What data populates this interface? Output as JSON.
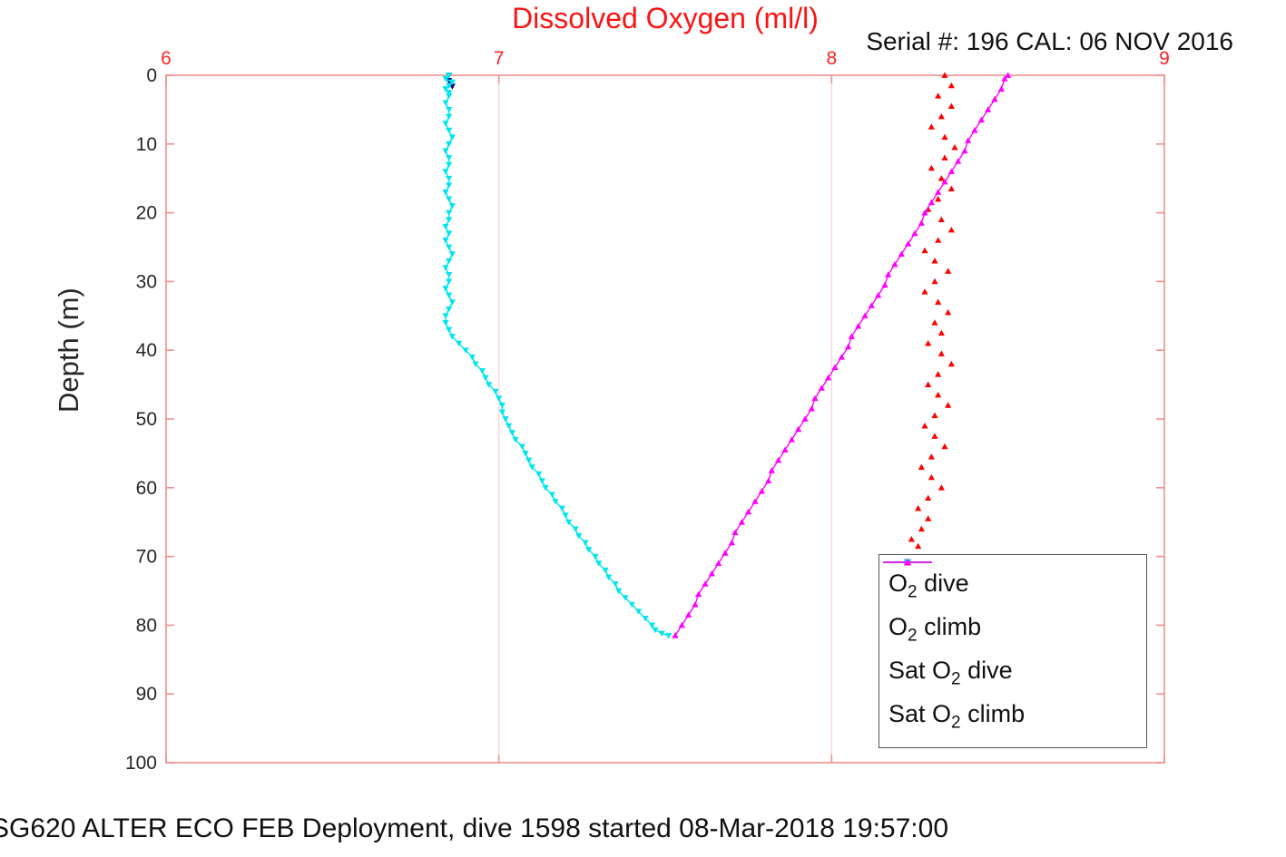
{
  "header": {
    "title": "Dissolved Oxygen (ml/l)",
    "title_color": "#fb1414",
    "serial": "Serial #: 196  CAL: 06 NOV 2016"
  },
  "ylabel": "Depth (m)",
  "footer": "SG620 ALTER ECO FEB Deployment, dive 1598 started 08-Mar-2018 19:57:00",
  "axes_style": {
    "box_color": "#ef8f8f",
    "grid_color": "#f8d7d7",
    "x_tick_label_color": "#ff2222",
    "y_tick_label_color": "#262626"
  },
  "chart_data": {
    "type": "line",
    "title": "Dissolved Oxygen (ml/l)",
    "xlabel": "",
    "ylabel": "Depth (m)",
    "xlim": [
      6,
      9
    ],
    "ylim": [
      0,
      100
    ],
    "y_axis_inverted": true,
    "x_axis_position": "top",
    "x_ticks": [
      6,
      7,
      8,
      9
    ],
    "y_ticks": [
      0,
      10,
      20,
      30,
      40,
      50,
      60,
      70,
      80,
      90,
      100
    ],
    "x_grid": [
      7,
      8
    ],
    "legend_position": "bottom-right",
    "series": [
      {
        "id": "o2-dive",
        "label_pre": "O",
        "label_sub": "2",
        "label_post": " dive",
        "color": "#00008b",
        "marker": "v",
        "line": true,
        "points": [
          [
            0,
            6.85
          ],
          [
            0.8,
            6.85
          ],
          [
            1.6,
            6.86
          ]
        ]
      },
      {
        "id": "o2-climb",
        "label_pre": "O",
        "label_sub": "2",
        "label_post": " climb",
        "color": "#ff0000",
        "marker": "^",
        "line": false,
        "points": [
          [
            0,
            8.34
          ],
          [
            1.5,
            8.36
          ],
          [
            3,
            8.32
          ],
          [
            4.5,
            8.36
          ],
          [
            6,
            8.33
          ],
          [
            7.5,
            8.3
          ],
          [
            9,
            8.34
          ],
          [
            10.5,
            8.37
          ],
          [
            12,
            8.34
          ],
          [
            13.5,
            8.3
          ],
          [
            15,
            8.33
          ],
          [
            16.5,
            8.36
          ],
          [
            18,
            8.32
          ],
          [
            19.5,
            8.29
          ],
          [
            21,
            8.33
          ],
          [
            22.5,
            8.36
          ],
          [
            24,
            8.32
          ],
          [
            25.5,
            8.28
          ],
          [
            27,
            8.31
          ],
          [
            28.5,
            8.35
          ],
          [
            30,
            8.31
          ],
          [
            31.5,
            8.28
          ],
          [
            33,
            8.32
          ],
          [
            34.5,
            8.35
          ],
          [
            36,
            8.31
          ],
          [
            37.5,
            8.33
          ],
          [
            39,
            8.29
          ],
          [
            40.5,
            8.33
          ],
          [
            42,
            8.36
          ],
          [
            43.5,
            8.32
          ],
          [
            45,
            8.29
          ],
          [
            46.5,
            8.32
          ],
          [
            48,
            8.35
          ],
          [
            49.5,
            8.31
          ],
          [
            51,
            8.28
          ],
          [
            52.5,
            8.31
          ],
          [
            54,
            8.34
          ],
          [
            55.5,
            8.3
          ],
          [
            57,
            8.27
          ],
          [
            58.5,
            8.3
          ],
          [
            60,
            8.33
          ],
          [
            61.5,
            8.29
          ],
          [
            63,
            8.26
          ],
          [
            64.5,
            8.29
          ],
          [
            66,
            8.27
          ],
          [
            67.5,
            8.24
          ],
          [
            68.5,
            8.26
          ]
        ]
      },
      {
        "id": "sat-o2-dive",
        "label_pre": "Sat O",
        "label_sub": "2",
        "label_post": " dive",
        "color": "#00e5ee",
        "marker": "v",
        "line": true,
        "points": [
          [
            0,
            6.85
          ],
          [
            0.5,
            6.84
          ],
          [
            1,
            6.86
          ],
          [
            1.5,
            6.85
          ],
          [
            2,
            6.84
          ],
          [
            2.5,
            6.85
          ],
          [
            3,
            6.85
          ],
          [
            4,
            6.84
          ],
          [
            5,
            6.85
          ],
          [
            6,
            6.85
          ],
          [
            7,
            6.84
          ],
          [
            8,
            6.85
          ],
          [
            9,
            6.86
          ],
          [
            10,
            6.85
          ],
          [
            11,
            6.84
          ],
          [
            12,
            6.85
          ],
          [
            13,
            6.85
          ],
          [
            14,
            6.84
          ],
          [
            15,
            6.85
          ],
          [
            16,
            6.85
          ],
          [
            17,
            6.84
          ],
          [
            18,
            6.85
          ],
          [
            19,
            6.86
          ],
          [
            20,
            6.85
          ],
          [
            21,
            6.85
          ],
          [
            22,
            6.84
          ],
          [
            23,
            6.85
          ],
          [
            24,
            6.84
          ],
          [
            25,
            6.85
          ],
          [
            26,
            6.86
          ],
          [
            27,
            6.85
          ],
          [
            28,
            6.84
          ],
          [
            29,
            6.85
          ],
          [
            30,
            6.85
          ],
          [
            31,
            6.84
          ],
          [
            32,
            6.85
          ],
          [
            33,
            6.86
          ],
          [
            34,
            6.85
          ],
          [
            35,
            6.84
          ],
          [
            36,
            6.84
          ],
          [
            37,
            6.85
          ],
          [
            38,
            6.86
          ],
          [
            39,
            6.88
          ],
          [
            40,
            6.9
          ],
          [
            41,
            6.92
          ],
          [
            42,
            6.93
          ],
          [
            43,
            6.95
          ],
          [
            44,
            6.96
          ],
          [
            45,
            6.97
          ],
          [
            46,
            6.99
          ],
          [
            47,
            7.0
          ],
          [
            48,
            7.01
          ],
          [
            49,
            7.01
          ],
          [
            50,
            7.02
          ],
          [
            51,
            7.03
          ],
          [
            52,
            7.04
          ],
          [
            53,
            7.05
          ],
          [
            54,
            7.07
          ],
          [
            55,
            7.08
          ],
          [
            56,
            7.09
          ],
          [
            57,
            7.1
          ],
          [
            58,
            7.12
          ],
          [
            59,
            7.13
          ],
          [
            60,
            7.14
          ],
          [
            61,
            7.16
          ],
          [
            62,
            7.17
          ],
          [
            63,
            7.19
          ],
          [
            64,
            7.2
          ],
          [
            65,
            7.21
          ],
          [
            66,
            7.23
          ],
          [
            67,
            7.24
          ],
          [
            68,
            7.26
          ],
          [
            69,
            7.27
          ],
          [
            70,
            7.29
          ],
          [
            71,
            7.3
          ],
          [
            72,
            7.32
          ],
          [
            73,
            7.33
          ],
          [
            74,
            7.35
          ],
          [
            75,
            7.36
          ],
          [
            76,
            7.38
          ],
          [
            77,
            7.4
          ],
          [
            78,
            7.42
          ],
          [
            79,
            7.44
          ],
          [
            80,
            7.46
          ],
          [
            80.7,
            7.47
          ],
          [
            81.2,
            7.49
          ],
          [
            81.5,
            7.51
          ]
        ]
      },
      {
        "id": "sat-o2-climb",
        "label_pre": "Sat O",
        "label_sub": "2",
        "label_post": " climb",
        "color": "#ff00ff",
        "marker": "^",
        "line": true,
        "points": [
          [
            81.5,
            7.53
          ],
          [
            80,
            7.55
          ],
          [
            78.5,
            7.57
          ],
          [
            77,
            7.59
          ],
          [
            75.5,
            7.6
          ],
          [
            74,
            7.62
          ],
          [
            72.5,
            7.64
          ],
          [
            71,
            7.66
          ],
          [
            69.5,
            7.68
          ],
          [
            68,
            7.7
          ],
          [
            66.5,
            7.71
          ],
          [
            65,
            7.73
          ],
          [
            63.5,
            7.75
          ],
          [
            62,
            7.77
          ],
          [
            60.5,
            7.79
          ],
          [
            59,
            7.81
          ],
          [
            57.5,
            7.82
          ],
          [
            56,
            7.84
          ],
          [
            54.5,
            7.86
          ],
          [
            53,
            7.88
          ],
          [
            51.5,
            7.9
          ],
          [
            50,
            7.92
          ],
          [
            48.5,
            7.94
          ],
          [
            47,
            7.95
          ],
          [
            45.5,
            7.97
          ],
          [
            44,
            7.99
          ],
          [
            42.5,
            8.01
          ],
          [
            41,
            8.03
          ],
          [
            39.5,
            8.05
          ],
          [
            38,
            8.06
          ],
          [
            36.5,
            8.08
          ],
          [
            35,
            8.1
          ],
          [
            33.5,
            8.12
          ],
          [
            32,
            8.14
          ],
          [
            30.5,
            8.16
          ],
          [
            29,
            8.17
          ],
          [
            27.5,
            8.19
          ],
          [
            26,
            8.21
          ],
          [
            24.5,
            8.23
          ],
          [
            23,
            8.25
          ],
          [
            21.5,
            8.27
          ],
          [
            20,
            8.28
          ],
          [
            18.5,
            8.3
          ],
          [
            17,
            8.32
          ],
          [
            15.5,
            8.34
          ],
          [
            14,
            8.36
          ],
          [
            12.5,
            8.38
          ],
          [
            11,
            8.4
          ],
          [
            9.5,
            8.41
          ],
          [
            8,
            8.43
          ],
          [
            6.5,
            8.45
          ],
          [
            5,
            8.47
          ],
          [
            3.5,
            8.49
          ],
          [
            2,
            8.51
          ],
          [
            0.5,
            8.52
          ],
          [
            0,
            8.53
          ]
        ]
      }
    ]
  }
}
